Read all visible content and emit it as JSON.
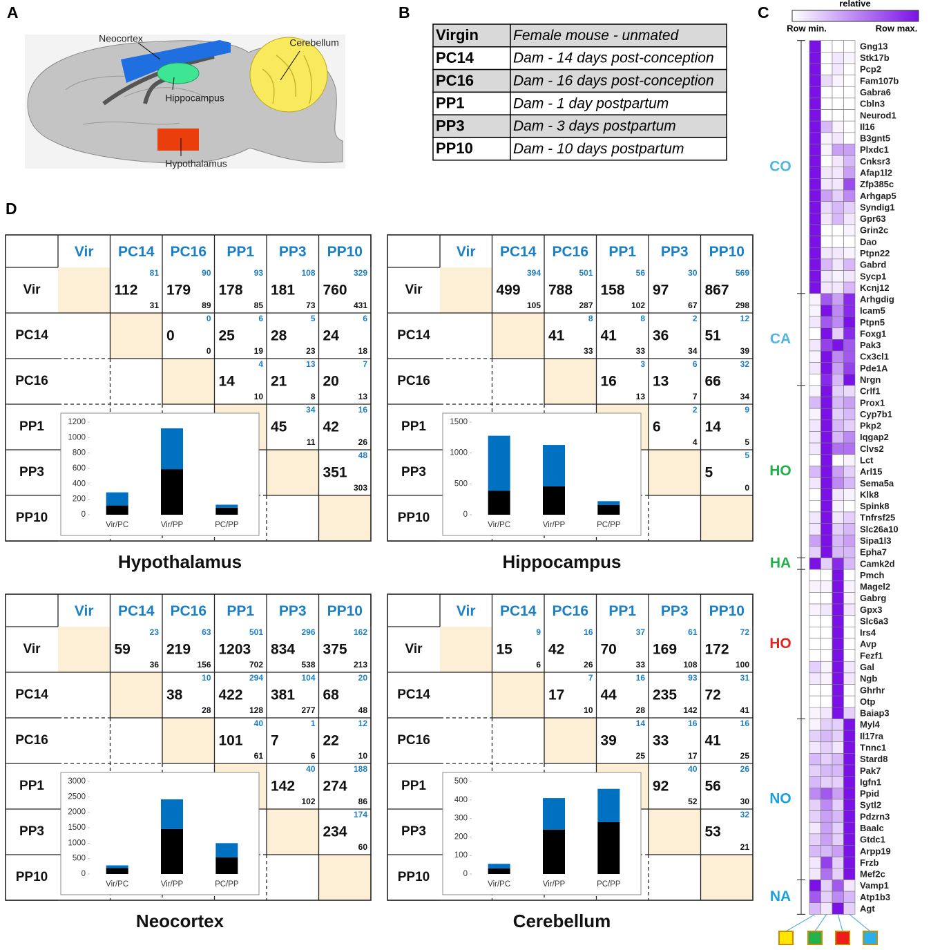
{
  "panel_a": {
    "label": "A",
    "regions": [
      "Neocortex",
      "Cerebellum",
      "Hippocampus",
      "Hypothalamus"
    ]
  },
  "panel_b": {
    "label": "B",
    "rows": [
      [
        "Virgin",
        "Female mouse - unmated"
      ],
      [
        "PC14",
        "Dam - 14 days post-conception"
      ],
      [
        "PC16",
        "Dam - 16 days post-conception"
      ],
      [
        "PP1",
        "Dam - 1 day postpartum"
      ],
      [
        "PP3",
        "Dam - 3 days postpartum"
      ],
      [
        "PP10",
        "Dam - 10 days postpartum"
      ]
    ]
  },
  "panel_c": {
    "label": "C",
    "legend_title": "relative",
    "min_label": "Row min.",
    "max_label": "Row max.",
    "color_low": "#ffffff",
    "color_high": "#7a12e6",
    "column_colors": [
      "#ffe600",
      "#22b14c",
      "#ee1c1c",
      "#2ab0e8"
    ],
    "groups": [
      {
        "label": "CO",
        "color": "#4fb6e3",
        "genes": [
          "Gng13",
          "Stk17b",
          "Pcp2",
          "Fam107b",
          "Gabra6",
          "Cbln3",
          "Neurod1",
          "Il16",
          "B3gnt5",
          "Plxdc1",
          "Cnksr3",
          "Afap1l2",
          "Zfp385c",
          "Arhgap5",
          "Syndig1",
          "Gpr63",
          "Grin2c",
          "Dao",
          "Ptpn22",
          "Gabrd",
          "Sycp1",
          "Kcnj12"
        ],
        "values": [
          [
            1,
            0,
            0,
            0
          ],
          [
            1,
            0,
            0.1,
            0.05
          ],
          [
            1,
            0,
            0.1,
            0
          ],
          [
            1,
            0.15,
            0.05,
            0
          ],
          [
            1,
            0,
            0,
            0
          ],
          [
            1,
            0,
            0,
            0
          ],
          [
            1,
            0,
            0,
            0
          ],
          [
            1,
            0.3,
            0.05,
            0
          ],
          [
            1,
            0.05,
            0.1,
            0
          ],
          [
            1,
            0.05,
            0.4,
            0.4
          ],
          [
            1,
            0,
            0.1,
            0.3
          ],
          [
            1,
            0.1,
            0.1,
            0.4
          ],
          [
            1,
            0.1,
            0.1,
            0.75
          ],
          [
            1,
            0.4,
            0.2,
            0.5
          ],
          [
            1,
            0.15,
            0.3,
            0.2
          ],
          [
            1,
            0.1,
            0.3,
            0.1
          ],
          [
            1,
            0,
            0,
            0.05
          ],
          [
            1,
            0,
            0,
            0
          ],
          [
            1,
            0.1,
            0.1,
            0.05
          ],
          [
            1,
            0.3,
            0.1,
            0.3
          ],
          [
            1,
            0.1,
            0.05,
            0.1
          ],
          [
            1,
            0.1,
            0.1,
            0.3
          ]
        ]
      },
      {
        "label": "CA",
        "color": "#4fb6e3",
        "genes": [
          "Arhgdig",
          "Icam5",
          "Ptpn5",
          "Foxg1",
          "Pak3",
          "Cx3cl1",
          "Pde1A",
          "Nrgn"
        ],
        "values": [
          [
            0.05,
            0.7,
            0.4,
            0.9
          ],
          [
            0.05,
            1,
            0.5,
            0.9
          ],
          [
            0.1,
            0.7,
            0.5,
            1
          ],
          [
            0,
            1,
            0.2,
            0.9
          ],
          [
            0.1,
            0.8,
            1,
            0.7
          ],
          [
            0.05,
            1,
            0.5,
            0.7
          ],
          [
            0.1,
            1,
            0.4,
            0.8
          ],
          [
            0,
            0.9,
            0.3,
            1
          ]
        ]
      },
      {
        "label": "HO",
        "color": "#1fb04a",
        "genes": [
          "Crlf1",
          "Prox1",
          "Cyp7b1",
          "Pkp2",
          "Iqgap2",
          "Clvs2",
          "Lct",
          "Arl15",
          "Sema5a",
          "Klk8",
          "Spink8",
          "Tnfrsf25",
          "Slc26a10",
          "Sipa1l3",
          "Epha7"
        ],
        "values": [
          [
            0.05,
            1,
            0.2,
            0.15
          ],
          [
            0.3,
            1,
            0.3,
            0.4
          ],
          [
            0.05,
            1,
            0.2,
            0.3
          ],
          [
            0.1,
            1,
            0.3,
            0.2
          ],
          [
            0.1,
            1,
            0.3,
            0.5
          ],
          [
            0.1,
            1,
            0.6,
            0.6
          ],
          [
            0,
            1,
            0,
            0.05
          ],
          [
            0.3,
            1,
            0.4,
            0.2
          ],
          [
            0.1,
            1,
            0.5,
            0.3
          ],
          [
            0,
            1,
            0.1,
            0.05
          ],
          [
            0,
            1,
            0.05,
            0
          ],
          [
            0.1,
            1,
            0.1,
            0.2
          ],
          [
            0.1,
            1,
            0.2,
            0.3
          ],
          [
            0.4,
            1,
            0.3,
            0.4
          ],
          [
            0.2,
            1,
            0.3,
            0.3
          ]
        ]
      },
      {
        "label": "HA",
        "color": "#1fb04a",
        "genes": [
          "Camk2d"
        ],
        "values": [
          [
            1,
            0.2,
            0.9,
            0.3
          ]
        ]
      },
      {
        "label": "HO",
        "color": "#e8221c",
        "genes": [
          "Pmch",
          "Magel2",
          "Gabrg",
          "Gpx3",
          "Slc6a3",
          "Irs4",
          "Avp",
          "Fezf1",
          "Gal",
          "Ngb",
          "Ghrhr",
          "Otp",
          "Baiap3"
        ],
        "values": [
          [
            0,
            0,
            1,
            0
          ],
          [
            0.05,
            0.05,
            1,
            0.05
          ],
          [
            0,
            0,
            1,
            0.05
          ],
          [
            0.05,
            0.1,
            1,
            0.1
          ],
          [
            0,
            0,
            1,
            0
          ],
          [
            0,
            0,
            1,
            0
          ],
          [
            0,
            0,
            1,
            0
          ],
          [
            0,
            0,
            1,
            0
          ],
          [
            0.2,
            0.05,
            1,
            0.1
          ],
          [
            0.1,
            0.05,
            1,
            0.1
          ],
          [
            0,
            0,
            1,
            0
          ],
          [
            0,
            0,
            1,
            0
          ],
          [
            0.05,
            0.1,
            1,
            0.2
          ]
        ]
      },
      {
        "label": "NO",
        "color": "#1da1db",
        "genes": [
          "Myl4",
          "Il17ra",
          "Tnnc1",
          "Stard8",
          "Pak7",
          "Igfn1",
          "Ppid",
          "Sytl2",
          "Pdzrn3",
          "Baalc",
          "Gtdc1",
          "Arpp19",
          "Frzb",
          "Mef2c"
        ],
        "values": [
          [
            0.05,
            0.2,
            0.2,
            1
          ],
          [
            0.2,
            0.3,
            0.2,
            1
          ],
          [
            0.1,
            0.2,
            0.1,
            1
          ],
          [
            0.3,
            0.2,
            0.3,
            1
          ],
          [
            0.2,
            0.3,
            0.3,
            1
          ],
          [
            0.3,
            0.2,
            0.2,
            1
          ],
          [
            0.5,
            0.7,
            0.4,
            1
          ],
          [
            0.2,
            0.5,
            0.2,
            1
          ],
          [
            0.2,
            0.4,
            0.3,
            1
          ],
          [
            0.1,
            0.4,
            0.2,
            1
          ],
          [
            0.2,
            0.4,
            0.2,
            1
          ],
          [
            0.3,
            0.3,
            0.4,
            1
          ],
          [
            0.1,
            0.8,
            0.2,
            1
          ],
          [
            0.1,
            0.6,
            0.2,
            1
          ]
        ]
      },
      {
        "label": "NA",
        "color": "#1da1db",
        "genes": [
          "Vamp1",
          "Atp1b3",
          "Agt"
        ],
        "values": [
          [
            1,
            0.2,
            0.7,
            0.1
          ],
          [
            0.7,
            0.2,
            0.5,
            0.3
          ],
          [
            0.3,
            0.1,
            1,
            0.2
          ]
        ]
      }
    ]
  },
  "panel_d": {
    "label": "D",
    "conditions": [
      "Vir",
      "PC14",
      "PC16",
      "PP1",
      "PP3",
      "PP10"
    ],
    "regions": [
      {
        "name": "Hypothalamus",
        "cells": [
          [
            null,
            [
              112,
              81,
              31
            ],
            [
              179,
              90,
              89
            ],
            [
              178,
              93,
              85
            ],
            [
              181,
              108,
              73
            ],
            [
              760,
              329,
              431
            ]
          ],
          [
            null,
            null,
            [
              0,
              0,
              0
            ],
            [
              25,
              6,
              19
            ],
            [
              28,
              5,
              23
            ],
            [
              24,
              6,
              18
            ]
          ],
          [
            null,
            null,
            null,
            [
              14,
              4,
              10
            ],
            [
              21,
              13,
              8
            ],
            [
              20,
              7,
              13
            ]
          ],
          [
            null,
            null,
            null,
            null,
            [
              45,
              34,
              11
            ],
            [
              42,
              16,
              26
            ]
          ],
          [
            null,
            null,
            null,
            null,
            null,
            [
              351,
              48,
              303
            ]
          ],
          [
            null,
            null,
            null,
            null,
            null,
            null
          ]
        ]
      },
      {
        "name": "Hippocampus",
        "cells": [
          [
            null,
            [
              499,
              394,
              105
            ],
            [
              788,
              501,
              287
            ],
            [
              158,
              56,
              102
            ],
            [
              97,
              30,
              67
            ],
            [
              867,
              569,
              298
            ]
          ],
          [
            null,
            null,
            [
              41,
              8,
              33
            ],
            [
              41,
              8,
              33
            ],
            [
              36,
              2,
              34
            ],
            [
              51,
              12,
              39
            ]
          ],
          [
            null,
            null,
            null,
            [
              16,
              3,
              13
            ],
            [
              13,
              6,
              7
            ],
            [
              66,
              32,
              34
            ]
          ],
          [
            null,
            null,
            null,
            null,
            [
              6,
              2,
              4
            ],
            [
              14,
              9,
              5
            ]
          ],
          [
            null,
            null,
            null,
            null,
            null,
            [
              5,
              5,
              0
            ]
          ],
          [
            null,
            null,
            null,
            null,
            null,
            null
          ]
        ]
      },
      {
        "name": "Neocortex",
        "cells": [
          [
            null,
            [
              59,
              23,
              36
            ],
            [
              219,
              63,
              156
            ],
            [
              1203,
              501,
              702
            ],
            [
              834,
              296,
              538
            ],
            [
              375,
              162,
              213
            ]
          ],
          [
            null,
            null,
            [
              38,
              10,
              28
            ],
            [
              422,
              294,
              128
            ],
            [
              381,
              104,
              277
            ],
            [
              68,
              20,
              48
            ]
          ],
          [
            null,
            null,
            null,
            [
              101,
              40,
              61
            ],
            [
              7,
              1,
              6
            ],
            [
              22,
              12,
              10
            ]
          ],
          [
            null,
            null,
            null,
            null,
            [
              142,
              40,
              102
            ],
            [
              274,
              188,
              86
            ]
          ],
          [
            null,
            null,
            null,
            null,
            null,
            [
              234,
              174,
              60
            ]
          ],
          [
            null,
            null,
            null,
            null,
            null,
            null
          ]
        ]
      },
      {
        "name": "Cerebellum",
        "cells": [
          [
            null,
            [
              15,
              9,
              6
            ],
            [
              42,
              16,
              26
            ],
            [
              70,
              37,
              33
            ],
            [
              169,
              61,
              108
            ],
            [
              172,
              72,
              100
            ]
          ],
          [
            null,
            null,
            [
              17,
              7,
              10
            ],
            [
              44,
              16,
              28
            ],
            [
              235,
              93,
              142
            ],
            [
              72,
              31,
              41
            ]
          ],
          [
            null,
            null,
            null,
            [
              39,
              14,
              25
            ],
            [
              33,
              16,
              17
            ],
            [
              41,
              16,
              25
            ]
          ],
          [
            null,
            null,
            null,
            null,
            [
              92,
              40,
              52
            ],
            [
              56,
              26,
              30
            ]
          ],
          [
            null,
            null,
            null,
            null,
            null,
            [
              53,
              32,
              21
            ]
          ],
          [
            null,
            null,
            null,
            null,
            null,
            null
          ]
        ]
      }
    ]
  },
  "chart_data": [
    {
      "type": "bar",
      "categories": [
        "Vir/PC",
        "Vir/PP",
        "PC/PP"
      ],
      "ylim": [
        0,
        1200
      ],
      "yticks": [
        0,
        200,
        400,
        600,
        800,
        1000,
        1200
      ],
      "series": [
        {
          "color": "#000000",
          "values": [
            120,
            590,
            90
          ]
        },
        {
          "color": "#0070c0",
          "values": [
            170,
            530,
            40
          ]
        }
      ]
    },
    {
      "type": "bar",
      "categories": [
        "Vir/PC",
        "Vir/PP",
        "PC/PP"
      ],
      "ylim": [
        0,
        1500
      ],
      "yticks": [
        0,
        500,
        1000,
        1500
      ],
      "series": [
        {
          "color": "#000000",
          "values": [
            390,
            460,
            160
          ]
        },
        {
          "color": "#0070c0",
          "values": [
            890,
            670,
            60
          ]
        }
      ]
    },
    {
      "type": "bar",
      "categories": [
        "Vir/PC",
        "Vir/PP",
        "PC/PP"
      ],
      "ylim": [
        0,
        3000
      ],
      "yticks": [
        0,
        500,
        1000,
        1500,
        2000,
        2500,
        3000
      ],
      "series": [
        {
          "color": "#000000",
          "values": [
            190,
            1460,
            540
          ]
        },
        {
          "color": "#0070c0",
          "values": [
            90,
            960,
            460
          ]
        }
      ]
    },
    {
      "type": "bar",
      "categories": [
        "Vir/PC",
        "Vir/PP",
        "PC/PP"
      ],
      "ylim": [
        0,
        500
      ],
      "yticks": [
        0,
        100,
        200,
        300,
        400,
        500
      ],
      "series": [
        {
          "color": "#000000",
          "values": [
            30,
            240,
            280
          ]
        },
        {
          "color": "#0070c0",
          "values": [
            25,
            170,
            180
          ]
        }
      ]
    }
  ]
}
